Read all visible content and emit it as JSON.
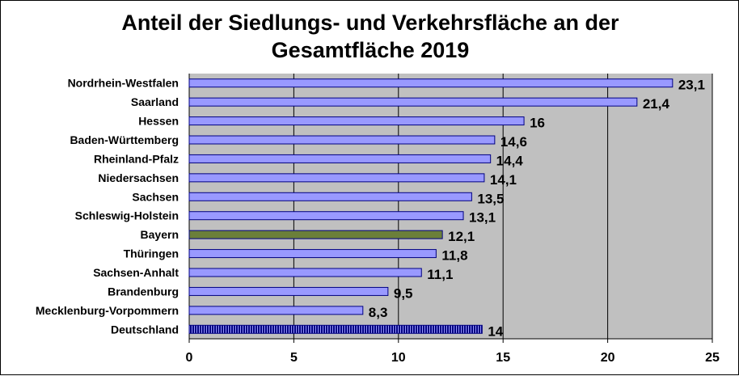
{
  "chart_data": {
    "type": "bar",
    "orientation": "horizontal",
    "title_line1": "Anteil der Siedlungs- und Verkehrsfläche an der",
    "title_line2": "Gesamtfläche 2019",
    "categories": [
      "Nordrhein-Westfalen",
      "Saarland",
      "Hessen",
      "Baden-Württemberg",
      "Rheinland-Pfalz",
      "Niedersachsen",
      "Sachsen",
      "Schleswig-Holstein",
      "Bayern",
      "Thüringen",
      "Sachsen-Anhalt",
      "Brandenburg",
      "Mecklenburg-Vorpommern",
      "Deutschland"
    ],
    "values": [
      23.1,
      21.4,
      16,
      14.6,
      14.4,
      14.1,
      13.5,
      13.1,
      12.1,
      11.8,
      11.1,
      9.5,
      8.3,
      14
    ],
    "value_labels": [
      "23,1",
      "21,4",
      "16",
      "14,6",
      "14,4",
      "14,1",
      "13,5",
      "13,1",
      "12,1",
      "11,8",
      "11,1",
      "9,5",
      "8,3",
      "14"
    ],
    "highlight": {
      "Bayern": "green",
      "Deutschland": "hatched-navy"
    },
    "xlim": [
      0,
      25
    ],
    "xticks": [
      0,
      5,
      10,
      15,
      20,
      25
    ],
    "xtick_labels": [
      "0",
      "5",
      "10",
      "15",
      "20",
      "25"
    ],
    "grid": "vertical",
    "colors": {
      "bar_default": "#9999FF",
      "bar_highlight": "#6B7F3A",
      "bar_total": "#000080",
      "plot_background": "#C0C0C0",
      "gridline": "#000000"
    }
  }
}
